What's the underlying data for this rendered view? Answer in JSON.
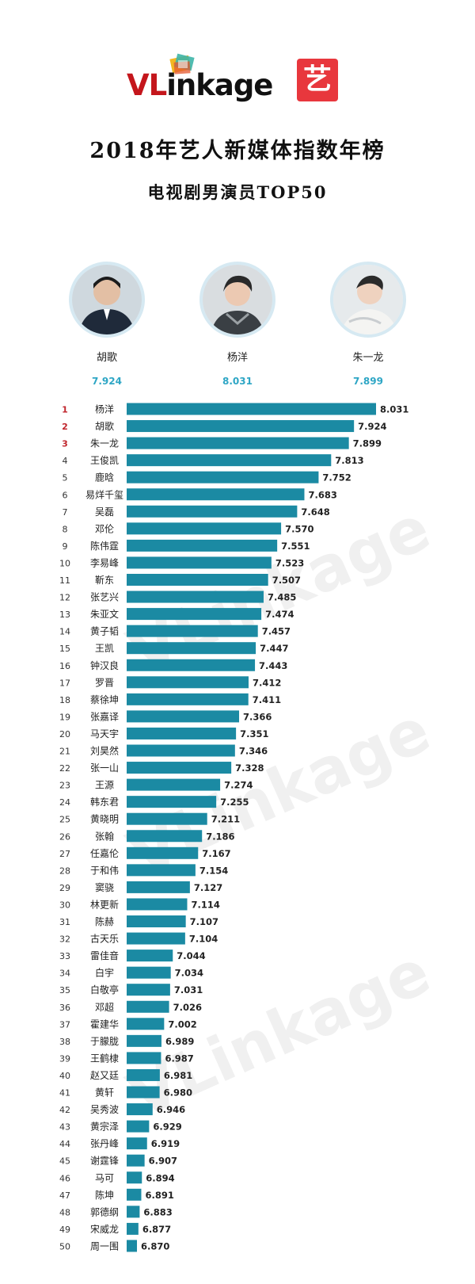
{
  "logo": {
    "brand_prefix": "VL",
    "brand_rest": "inkage",
    "badge": "艺"
  },
  "title": "2018年艺人新媒体指数年榜",
  "subtitle": "电视剧男演员TOP50",
  "colors": {
    "bar": "#1b8aa3",
    "top_rank": "#c0262d",
    "score_highlight": "#2ea6c5",
    "brand_red": "#c4161c"
  },
  "top3": [
    {
      "name": "胡歌",
      "score": "7.924"
    },
    {
      "name": "杨洋",
      "score": "8.031"
    },
    {
      "name": "朱一龙",
      "score": "7.899"
    }
  ],
  "watermark": "VLinkage",
  "chart_data": {
    "type": "bar",
    "orientation": "horizontal",
    "title": "2018年艺人新媒体指数年榜",
    "subtitle": "电视剧男演员TOP50",
    "categories": [
      "杨洋",
      "胡歌",
      "朱一龙",
      "王俊凯",
      "鹿晗",
      "易烊千玺",
      "吴磊",
      "邓伦",
      "陈伟霆",
      "李易峰",
      "靳东",
      "张艺兴",
      "朱亚文",
      "黄子韬",
      "王凯",
      "钟汉良",
      "罗晋",
      "蔡徐坤",
      "张嘉译",
      "马天宇",
      "刘昊然",
      "张一山",
      "王源",
      "韩东君",
      "黄晓明",
      "张翰",
      "任嘉伦",
      "于和伟",
      "窦骁",
      "林更新",
      "陈赫",
      "古天乐",
      "雷佳音",
      "白宇",
      "白敬亭",
      "邓超",
      "霍建华",
      "于朦胧",
      "王鹤棣",
      "赵又廷",
      "黄轩",
      "吴秀波",
      "黄宗泽",
      "张丹峰",
      "谢霆锋",
      "马可",
      "陈坤",
      "郭德纲",
      "宋威龙",
      "周一围"
    ],
    "values": [
      8.031,
      7.924,
      7.899,
      7.813,
      7.752,
      7.683,
      7.648,
      7.57,
      7.551,
      7.523,
      7.507,
      7.485,
      7.474,
      7.457,
      7.447,
      7.443,
      7.412,
      7.411,
      7.366,
      7.351,
      7.346,
      7.328,
      7.274,
      7.255,
      7.211,
      7.186,
      7.167,
      7.154,
      7.127,
      7.114,
      7.107,
      7.104,
      7.044,
      7.034,
      7.031,
      7.026,
      7.002,
      6.989,
      6.987,
      6.981,
      6.98,
      6.946,
      6.929,
      6.919,
      6.907,
      6.894,
      6.891,
      6.883,
      6.877,
      6.87
    ],
    "labels": [
      "8.031",
      "7.924",
      "7.899",
      "7.813",
      "7.752",
      "7.683",
      "7.648",
      "7.570",
      "7.551",
      "7.523",
      "7.507",
      "7.485",
      "7.474",
      "7.457",
      "7.447",
      "7.443",
      "7.412",
      "7.411",
      "7.366",
      "7.351",
      "7.346",
      "7.328",
      "7.274",
      "7.255",
      "7.211",
      "7.186",
      "7.167",
      "7.154",
      "7.127",
      "7.114",
      "7.107",
      "7.104",
      "7.044",
      "7.034",
      "7.031",
      "7.026",
      "7.002",
      "6.989",
      "6.987",
      "6.981",
      "6.980",
      "6.946",
      "6.929",
      "6.919",
      "6.907",
      "6.894",
      "6.891",
      "6.883",
      "6.877",
      "6.870"
    ],
    "ranks": [
      "1",
      "2",
      "3",
      "4",
      "5",
      "6",
      "7",
      "8",
      "9",
      "10",
      "11",
      "12",
      "13",
      "14",
      "15",
      "16",
      "17",
      "18",
      "19",
      "20",
      "21",
      "22",
      "23",
      "24",
      "25",
      "26",
      "27",
      "28",
      "29",
      "30",
      "31",
      "32",
      "33",
      "34",
      "35",
      "36",
      "37",
      "38",
      "39",
      "40",
      "41",
      "42",
      "43",
      "44",
      "45",
      "46",
      "47",
      "48",
      "49",
      "50"
    ],
    "grid": false,
    "axis_visible": false
  }
}
